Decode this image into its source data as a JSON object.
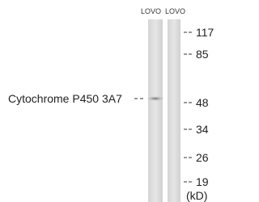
{
  "lanes": [
    "LOVO",
    "LOVO"
  ],
  "target": "Cytochrome P450 3A7",
  "markers": [
    "117",
    "85",
    "48",
    "34",
    "26",
    "19"
  ],
  "unit": "(kD)"
}
